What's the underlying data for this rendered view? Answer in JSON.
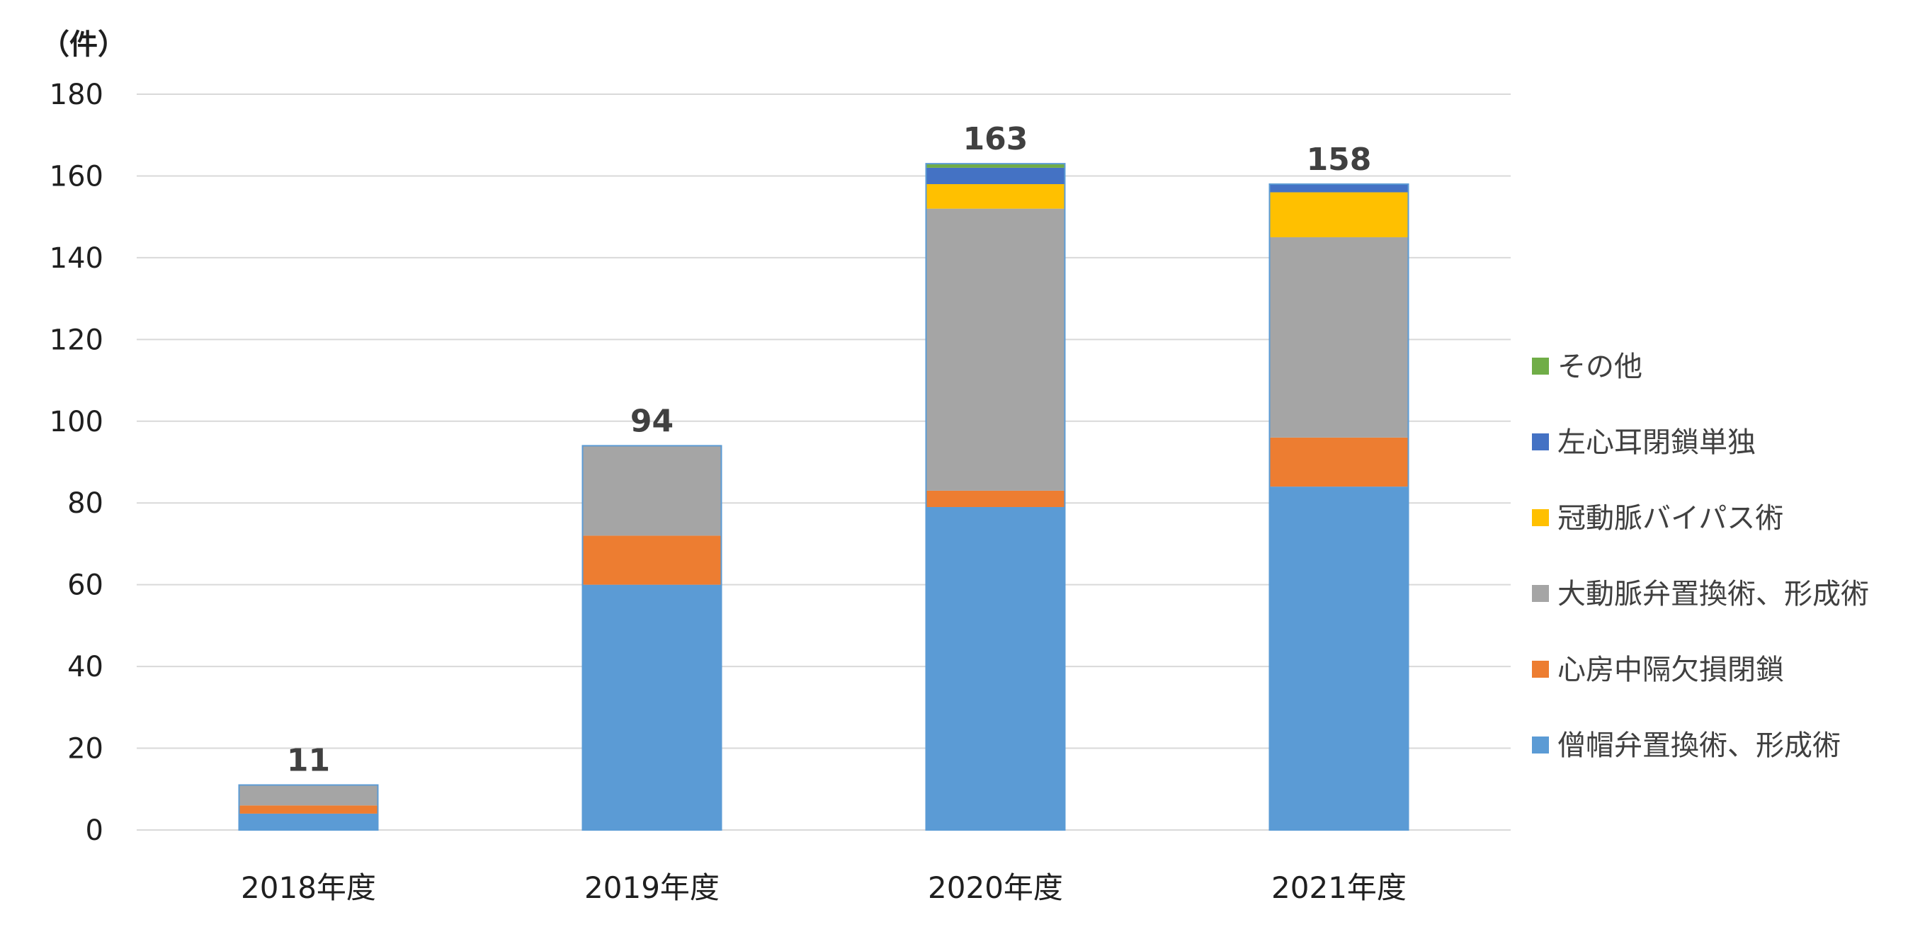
{
  "chart_data": {
    "type": "bar",
    "stacked": true,
    "unit_label": "（件）",
    "categories": [
      "2018年度",
      "2019年度",
      "2020年度",
      "2021年度"
    ],
    "totals": [
      11,
      94,
      163,
      158
    ],
    "ylim": [
      0,
      180
    ],
    "yticks": [
      0,
      20,
      40,
      60,
      80,
      100,
      120,
      140,
      160,
      180
    ],
    "grid": true,
    "legend_position": "right",
    "series": [
      {
        "name": "僧帽弁置換術、形成術",
        "color": "#5b9bd5",
        "values": [
          4,
          60,
          79,
          84
        ]
      },
      {
        "name": "心房中隔欠損閉鎖",
        "color": "#ed7d31",
        "values": [
          2,
          12,
          4,
          12
        ]
      },
      {
        "name": "大動脈弁置換術、形成術",
        "color": "#a5a5a5",
        "values": [
          5,
          22,
          69,
          49
        ]
      },
      {
        "name": "冠動脈バイパス術",
        "color": "#ffc000",
        "values": [
          0,
          0,
          6,
          11
        ]
      },
      {
        "name": "左心耳閉鎖単独",
        "color": "#4472c4",
        "values": [
          0,
          0,
          4,
          2
        ]
      },
      {
        "name": "その他",
        "color": "#70ad47",
        "values": [
          0,
          0,
          1,
          0
        ]
      }
    ]
  }
}
